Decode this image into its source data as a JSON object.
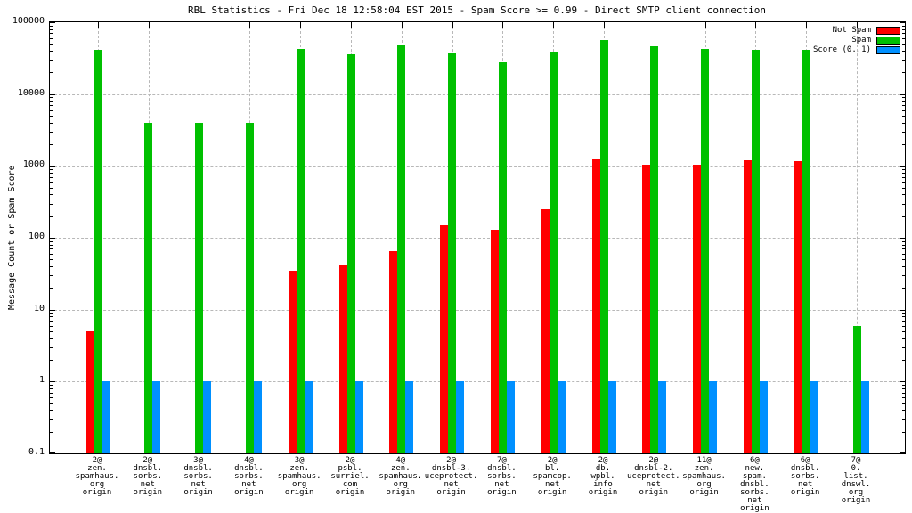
{
  "page": {
    "background": "#ffffff"
  },
  "chart_data": {
    "type": "bar",
    "title": "RBL Statistics - Fri Dec 18 12:58:04 EST 2015 - Spam Score >= 0.99 - Direct SMTP client connection",
    "xlabel": "",
    "ylabel": "Message Count or Spam Score",
    "y_scale": "log",
    "ylim": [
      0.1,
      100000
    ],
    "grid": true,
    "legend_position": "top-right",
    "grid_color": "#b8b8b8",
    "y_ticks": [
      {
        "value": 100000,
        "label": "100000"
      },
      {
        "value": 10000,
        "label": "10000"
      },
      {
        "value": 1000,
        "label": "1000"
      },
      {
        "value": 100,
        "label": "100"
      },
      {
        "value": 10,
        "label": "10"
      },
      {
        "value": 1,
        "label": "1"
      },
      {
        "value": 0.1,
        "label": "0.1"
      }
    ],
    "categories": [
      [
        "2@",
        "zen.",
        "spamhaus.",
        "org",
        "origin"
      ],
      [
        "2@",
        "dnsbl.",
        "sorbs.",
        "net",
        "origin"
      ],
      [
        "3@",
        "dnsbl.",
        "sorbs.",
        "net",
        "origin"
      ],
      [
        "4@",
        "dnsbl.",
        "sorbs.",
        "net",
        "origin"
      ],
      [
        "3@",
        "zen.",
        "spamhaus.",
        "org",
        "origin"
      ],
      [
        "2@",
        "psbl.",
        "surriel.",
        "com",
        "origin"
      ],
      [
        "4@",
        "zen.",
        "spamhaus.",
        "org",
        "origin"
      ],
      [
        "2@",
        "dnsbl-3.",
        "uceprotect.",
        "net",
        "origin"
      ],
      [
        "7@",
        "dnsbl.",
        "sorbs.",
        "net",
        "origin"
      ],
      [
        "2@",
        "bl.",
        "spamcop.",
        "net",
        "origin"
      ],
      [
        "2@",
        "db.",
        "wpbl.",
        "info",
        "origin"
      ],
      [
        "2@",
        "dnsbl-2.",
        "uceprotect.",
        "net",
        "origin"
      ],
      [
        "11@",
        "zen.",
        "spamhaus.",
        "org",
        "origin"
      ],
      [
        "6@",
        "new.",
        "spam.",
        "dnsbl.",
        "sorbs.",
        "net",
        "origin"
      ],
      [
        "6@",
        "dnsbl.",
        "sorbs.",
        "net",
        "origin"
      ],
      [
        "7@",
        "0.",
        "list.",
        "dnswl.",
        "org",
        "origin"
      ]
    ],
    "series": [
      {
        "name": "Not Spam",
        "color": "#ff0000",
        "values": [
          5,
          null,
          null,
          null,
          35,
          42,
          65,
          150,
          130,
          250,
          1250,
          1050,
          1050,
          1200,
          1150,
          null
        ]
      },
      {
        "name": "Spam",
        "color": "#00c000",
        "values": [
          41000,
          4000,
          4000,
          4000,
          43000,
          36000,
          47000,
          38000,
          28000,
          39000,
          57000,
          46000,
          42000,
          41000,
          41000,
          6
        ]
      },
      {
        "name": "Score (0..1)",
        "color": "#0090ff",
        "values": [
          1,
          1,
          1,
          1,
          1,
          1,
          1,
          1,
          1,
          1,
          1,
          1,
          1,
          1,
          1,
          1
        ]
      }
    ]
  }
}
